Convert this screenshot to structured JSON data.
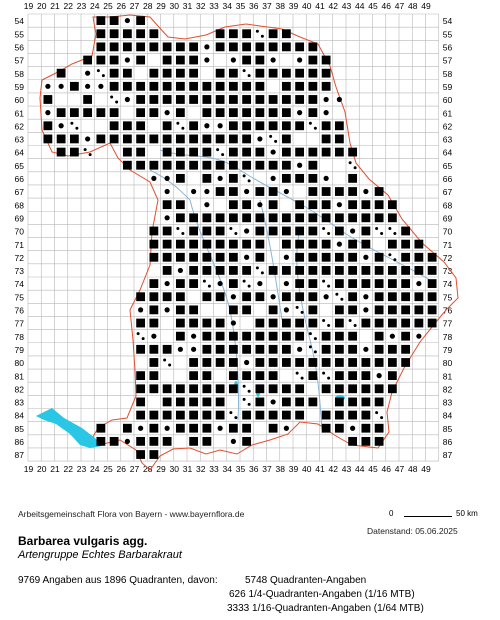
{
  "map": {
    "x_labels": [
      "19",
      "20",
      "21",
      "22",
      "23",
      "24",
      "25",
      "26",
      "27",
      "28",
      "29",
      "30",
      "31",
      "32",
      "33",
      "34",
      "35",
      "36",
      "37",
      "38",
      "39",
      "40",
      "41",
      "42",
      "43",
      "44",
      "45",
      "46",
      "47",
      "48",
      "49"
    ],
    "y_labels": [
      "54",
      "55",
      "56",
      "57",
      "58",
      "59",
      "60",
      "61",
      "62",
      "63",
      "64",
      "65",
      "66",
      "67",
      "68",
      "69",
      "70",
      "71",
      "72",
      "73",
      "74",
      "75",
      "76",
      "77",
      "78",
      "79",
      "80",
      "81",
      "82",
      "83",
      "84",
      "85",
      "86",
      "87"
    ],
    "colors": {
      "grid": "#b8b8b8",
      "border": "#e05030",
      "rivers": "#8ab6d8",
      "lakes": "#29c6e6",
      "marker": "#000000"
    },
    "legend_symbols": {
      "quadrant": "filled-square",
      "quarter_quadrant": "filled-circle",
      "sixteenth_quadrant": "small-dot"
    }
  },
  "footer": {
    "credit": "Arbeitsgemeinschaft Flora von Bayern - www.bayernflora.de",
    "scale_zero": "0",
    "scale_label": "50 km",
    "date": "Datenstand: 05.06.2025",
    "title": "Barbarea vulgaris agg.",
    "subtitle": "Artengruppe Echtes Barbarakraut",
    "summary": "9769 Angaben aus 1896 Quadranten, davon:",
    "detail_1": "5748 Quadranten-Angaben",
    "detail_2": "626 1/4-Quadranten-Angaben (1/16 MTB)",
    "detail_3": "3333 1/16-Quadranten-Angaben (1/64 MTB)"
  }
}
